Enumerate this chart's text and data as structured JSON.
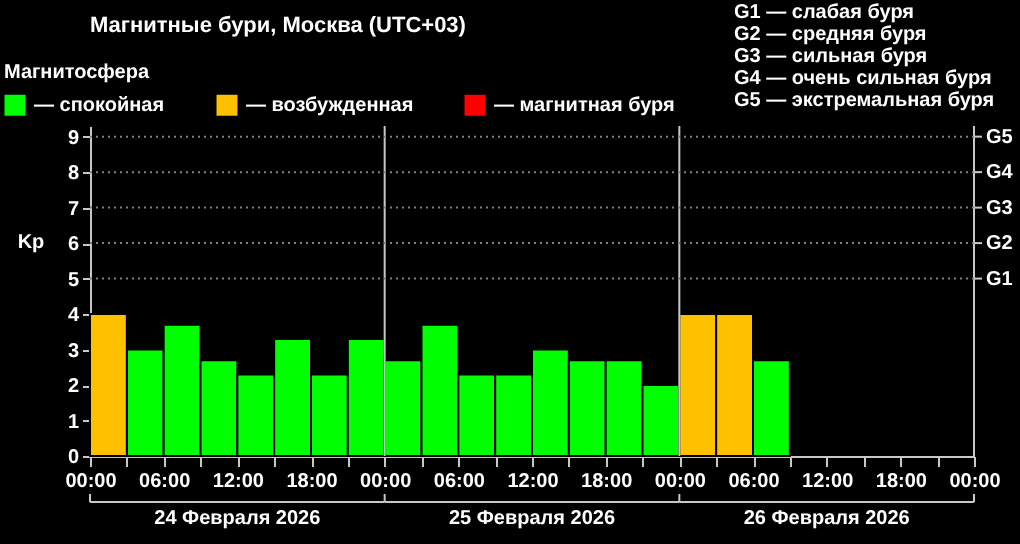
{
  "chart_data": {
    "type": "bar",
    "title": "Магнитные бури, Москва (UTC+03)",
    "ylabel": "Kp",
    "legend_title": "Магнитосфера",
    "legend": "top left",
    "x": [
      "2026-02-24T01:30",
      "2026-02-24T04:30",
      "2026-02-24T07:30",
      "2026-02-24T10:30",
      "2026-02-24T13:30",
      "2026-02-24T16:30",
      "2026-02-24T19:30",
      "2026-02-24T22:30",
      "2026-02-25T01:30",
      "2026-02-25T04:30",
      "2026-02-25T07:30",
      "2026-02-25T10:30",
      "2026-02-25T13:30",
      "2026-02-25T16:30",
      "2026-02-25T19:30",
      "2026-02-25T22:30",
      "2026-02-26T01:30",
      "2026-02-26T04:30",
      "2026-02-26T07:30"
    ],
    "series": [
      {
        "name": "— спокойная",
        "color": "#00ff00",
        "values": [
          null,
          3,
          3.7,
          2.7,
          2.3,
          3.3,
          2.3,
          3.3,
          2.7,
          3.7,
          2.3,
          2.3,
          3,
          2.7,
          2.7,
          2,
          null,
          null,
          2.7
        ]
      },
      {
        "name": "— возбужденная",
        "color": "#ffc000",
        "values": [
          4,
          null,
          null,
          null,
          null,
          null,
          null,
          null,
          null,
          null,
          null,
          null,
          null,
          null,
          null,
          null,
          4,
          4,
          null
        ]
      },
      {
        "name": "— магнитная буря",
        "color": "#ff0000",
        "values": [
          null,
          null,
          null,
          null,
          null,
          null,
          null,
          null,
          null,
          null,
          null,
          null,
          null,
          null,
          null,
          null,
          null,
          null,
          null
        ]
      }
    ],
    "xlim": [
      "2026-02-24T00:00",
      "2026-02-27T00:00"
    ],
    "xticks": [
      {
        "value": "2026-02-24T00:00",
        "label": "00:00"
      },
      {
        "value": "2026-02-24T03:00",
        "label": null
      },
      {
        "value": "2026-02-24T06:00",
        "label": "06:00"
      },
      {
        "value": "2026-02-24T09:00",
        "label": null
      },
      {
        "value": "2026-02-24T12:00",
        "label": "12:00"
      },
      {
        "value": "2026-02-24T15:00",
        "label": null
      },
      {
        "value": "2026-02-24T18:00",
        "label": "18:00"
      },
      {
        "value": "2026-02-24T21:00",
        "label": null
      },
      {
        "value": "2026-02-25T00:00",
        "label": "00:00"
      },
      {
        "value": "2026-02-25T03:00",
        "label": null
      },
      {
        "value": "2026-02-25T06:00",
        "label": "06:00"
      },
      {
        "value": "2026-02-25T09:00",
        "label": null
      },
      {
        "value": "2026-02-25T12:00",
        "label": "12:00"
      },
      {
        "value": "2026-02-25T15:00",
        "label": null
      },
      {
        "value": "2026-02-25T18:00",
        "label": "18:00"
      },
      {
        "value": "2026-02-25T21:00",
        "label": null
      },
      {
        "value": "2026-02-26T00:00",
        "label": "00:00"
      },
      {
        "value": "2026-02-26T03:00",
        "label": null
      },
      {
        "value": "2026-02-26T06:00",
        "label": "06:00"
      },
      {
        "value": "2026-02-26T09:00",
        "label": null
      },
      {
        "value": "2026-02-26T12:00",
        "label": "12:00"
      },
      {
        "value": "2026-02-26T15:00",
        "label": null
      },
      {
        "value": "2026-02-26T18:00",
        "label": "18:00"
      },
      {
        "value": "2026-02-26T21:00",
        "label": null
      },
      {
        "value": "2026-02-27T00:00",
        "label": "00:00"
      }
    ],
    "ylim": [
      0,
      9.3
    ],
    "yticks": [
      0,
      1,
      2,
      3,
      4,
      5,
      6,
      7,
      8,
      9
    ],
    "ref_lines": [
      {
        "axis": "x",
        "value": "2026-02-25T00:00",
        "color": "#c8c8c8",
        "line_style": "solid"
      },
      {
        "axis": "x",
        "value": "2026-02-26T00:00",
        "color": "#c8c8c8",
        "line_style": "solid"
      },
      {
        "axis": "y",
        "value": 5,
        "label": "G1",
        "color": "#808080",
        "line_style": "dotted"
      },
      {
        "axis": "y",
        "value": 6,
        "label": "G2",
        "color": "#808080",
        "line_style": "dotted"
      },
      {
        "axis": "y",
        "value": 7,
        "label": "G3",
        "color": "#808080",
        "line_style": "dotted"
      },
      {
        "axis": "y",
        "value": 8,
        "label": "G4",
        "color": "#808080",
        "line_style": "dotted"
      },
      {
        "axis": "y",
        "value": 9,
        "label": "G5",
        "color": "#808080",
        "line_style": "dotted"
      }
    ],
    "annotations": [
      "G1 — слабая буря",
      "G2 — средняя буря",
      "G3 — сильная буря",
      "G4 — очень сильная буря",
      "G5 — экстремальная буря",
      "24 Февраля 2026",
      "25 Февраля 2026",
      "26 Февраля 2026"
    ]
  }
}
